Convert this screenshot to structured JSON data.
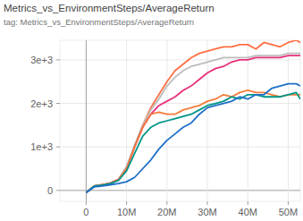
{
  "chart_data": {
    "type": "line",
    "title": "Metrics_vs_EnvironmentSteps/AverageReturn",
    "subtitle": "tag: Metrics_vs_EnvironmentSteps/AverageReturn",
    "x": [
      0,
      2000000,
      4000000,
      6000000,
      8000000,
      10000000,
      12000000,
      14000000,
      16000000,
      18000000,
      20000000,
      22000000,
      24000000,
      26000000,
      28000000,
      30000000,
      32000000,
      34000000,
      36000000,
      38000000,
      40000000,
      42000000,
      44000000,
      46000000,
      48000000,
      50000000,
      52000000,
      53000000
    ],
    "series": [
      {
        "color": "#ff7043",
        "values": [
          -50,
          100,
          130,
          170,
          250,
          500,
          1000,
          1500,
          1900,
          2200,
          2500,
          2750,
          2900,
          3050,
          3150,
          3200,
          3250,
          3300,
          3300,
          3350,
          3350,
          3250,
          3400,
          3350,
          3300,
          3400,
          3450,
          3400
        ]
      },
      {
        "color": "#bdbdbd",
        "values": [
          -50,
          100,
          130,
          170,
          260,
          550,
          1050,
          1500,
          1850,
          2100,
          2400,
          2600,
          2750,
          2850,
          2900,
          2950,
          3000,
          3050,
          3050,
          3050,
          3050,
          3100,
          3100,
          3100,
          3100,
          3150,
          3150,
          3150
        ]
      },
      {
        "color": "#e7307a",
        "values": [
          -50,
          100,
          130,
          170,
          250,
          500,
          1000,
          1450,
          1750,
          1950,
          2050,
          2150,
          2300,
          2400,
          2550,
          2700,
          2800,
          2850,
          2950,
          3000,
          3000,
          3050,
          3050,
          3050,
          3050,
          3100,
          3100,
          3100
        ]
      },
      {
        "color": "#f57c3a",
        "values": [
          -50,
          100,
          130,
          170,
          250,
          500,
          1000,
          1450,
          1750,
          1800,
          1750,
          1750,
          1850,
          1900,
          1950,
          2050,
          2100,
          2200,
          2150,
          2250,
          2300,
          2250,
          2250,
          2200,
          2150,
          2200,
          2200,
          2200
        ]
      },
      {
        "color": "#009688",
        "values": [
          -50,
          100,
          120,
          160,
          230,
          450,
          850,
          1250,
          1450,
          1550,
          1600,
          1650,
          1700,
          1750,
          1850,
          1950,
          2000,
          2050,
          2150,
          2100,
          2200,
          2200,
          2150,
          2150,
          2150,
          2200,
          2250,
          2100
        ]
      },
      {
        "color": "#1e6fc8",
        "values": [
          -50,
          80,
          100,
          130,
          160,
          200,
          300,
          500,
          700,
          950,
          1150,
          1300,
          1450,
          1550,
          1750,
          1900,
          1950,
          2000,
          2050,
          2150,
          2100,
          2200,
          2200,
          2350,
          2400,
          2450,
          2450,
          2400
        ]
      }
    ],
    "xlim": [
      -6500000,
      53000000
    ],
    "ylim": [
      -250,
      3450
    ],
    "xticks": [
      0,
      {
        "value": 10000000,
        "label": "10M"
      },
      {
        "value": 20000000,
        "label": "20M"
      },
      {
        "value": 30000000,
        "label": "30M"
      },
      {
        "value": 40000000,
        "label": "40M"
      },
      {
        "value": 50000000,
        "label": "50M"
      }
    ],
    "yticks": [
      0,
      {
        "value": 1000,
        "label": "1e+3"
      },
      {
        "value": 2000,
        "label": "2e+3"
      },
      {
        "value": 3000,
        "label": "3e+3"
      }
    ],
    "grid": true
  }
}
